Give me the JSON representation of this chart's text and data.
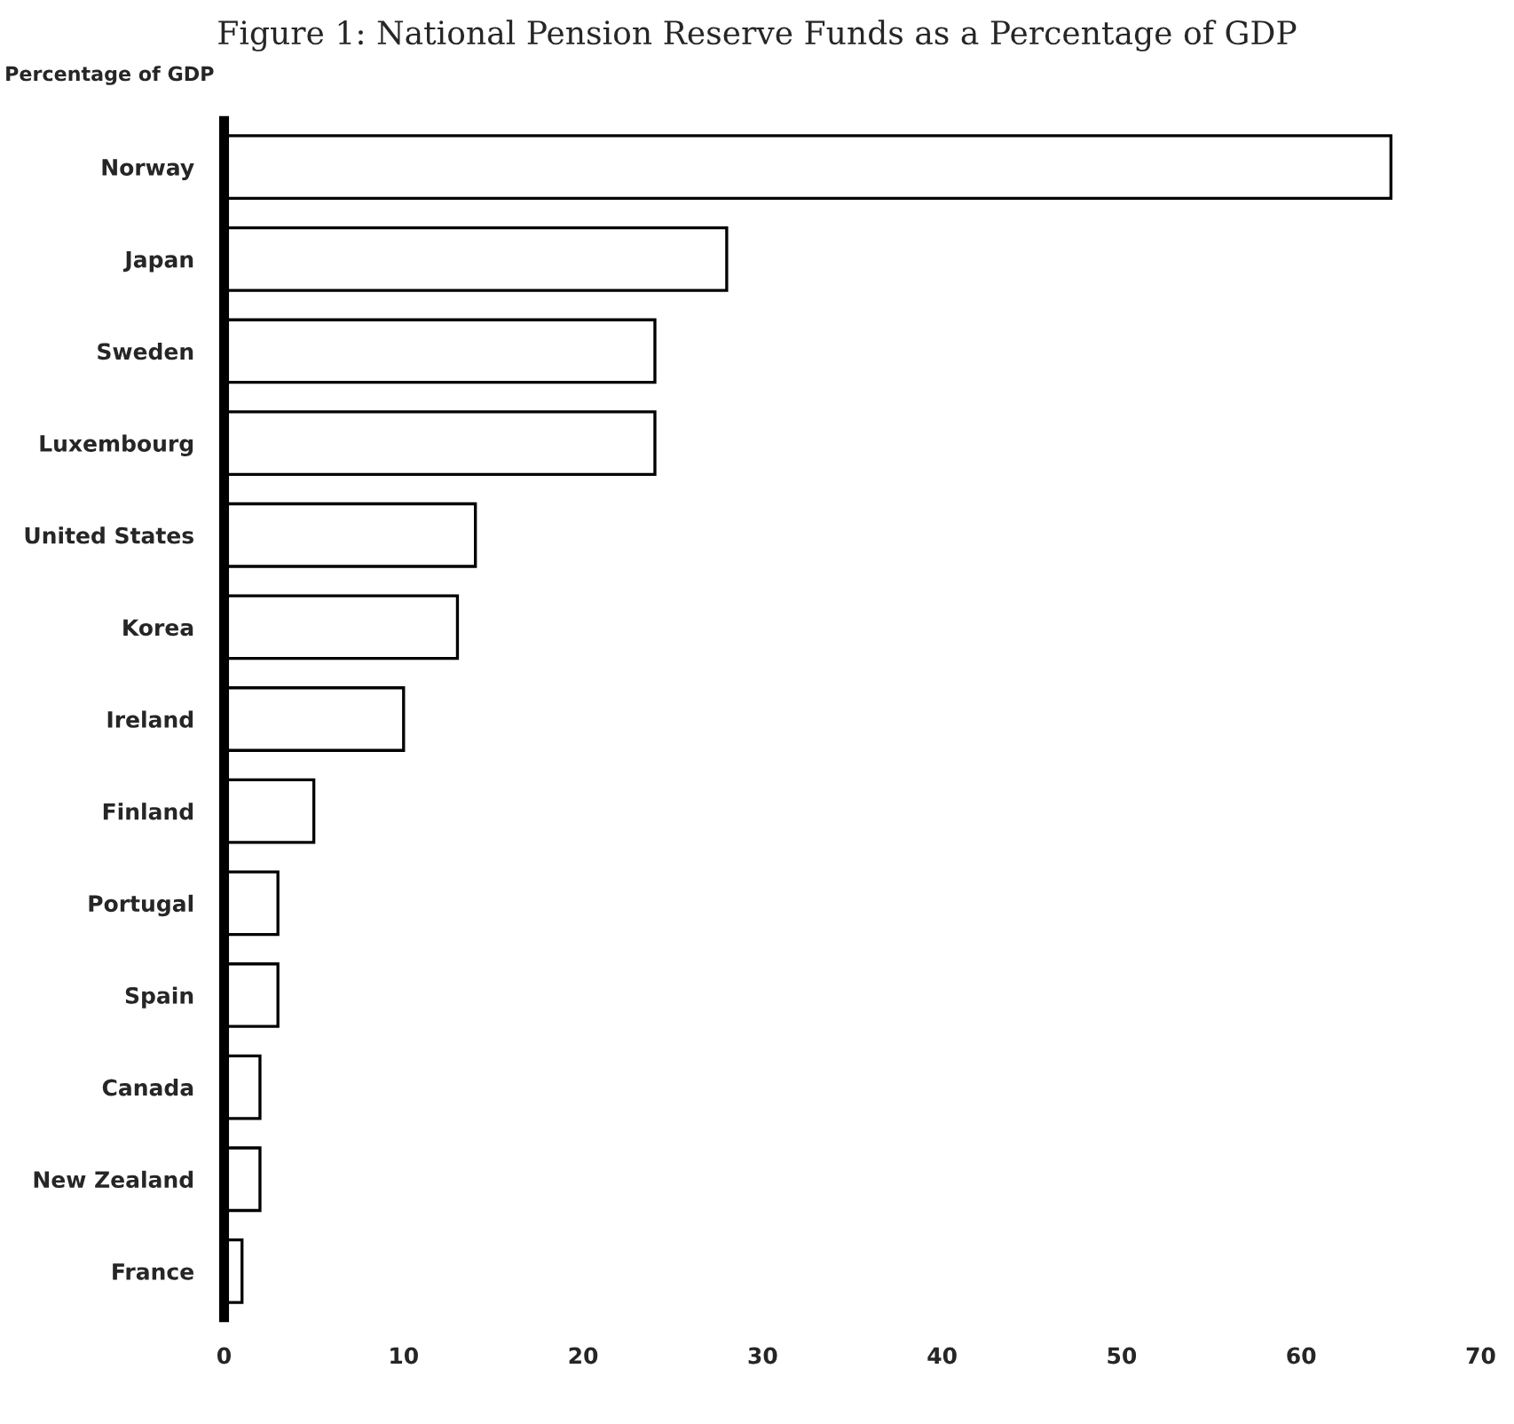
{
  "chart_data": {
    "type": "bar",
    "orientation": "horizontal",
    "title": "Figure 1: National Pension Reserve Funds as a Percentage of GDP",
    "xlabel": "Percentage of GDP",
    "categories": [
      "Norway",
      "Japan",
      "Sweden",
      "Luxembourg",
      "United States",
      "Korea",
      "Ireland",
      "Finland",
      "Portugal",
      "Spain",
      "Canada",
      "New Zealand",
      "France"
    ],
    "values": [
      65,
      28,
      24,
      24,
      14,
      13,
      10,
      5,
      3,
      3,
      2,
      2,
      1
    ],
    "color": "#ffffff",
    "xlim": [
      0,
      70
    ],
    "xticks": [
      0,
      10,
      20,
      30,
      40,
      50,
      60,
      70
    ],
    "grid": false,
    "legend": false
  }
}
